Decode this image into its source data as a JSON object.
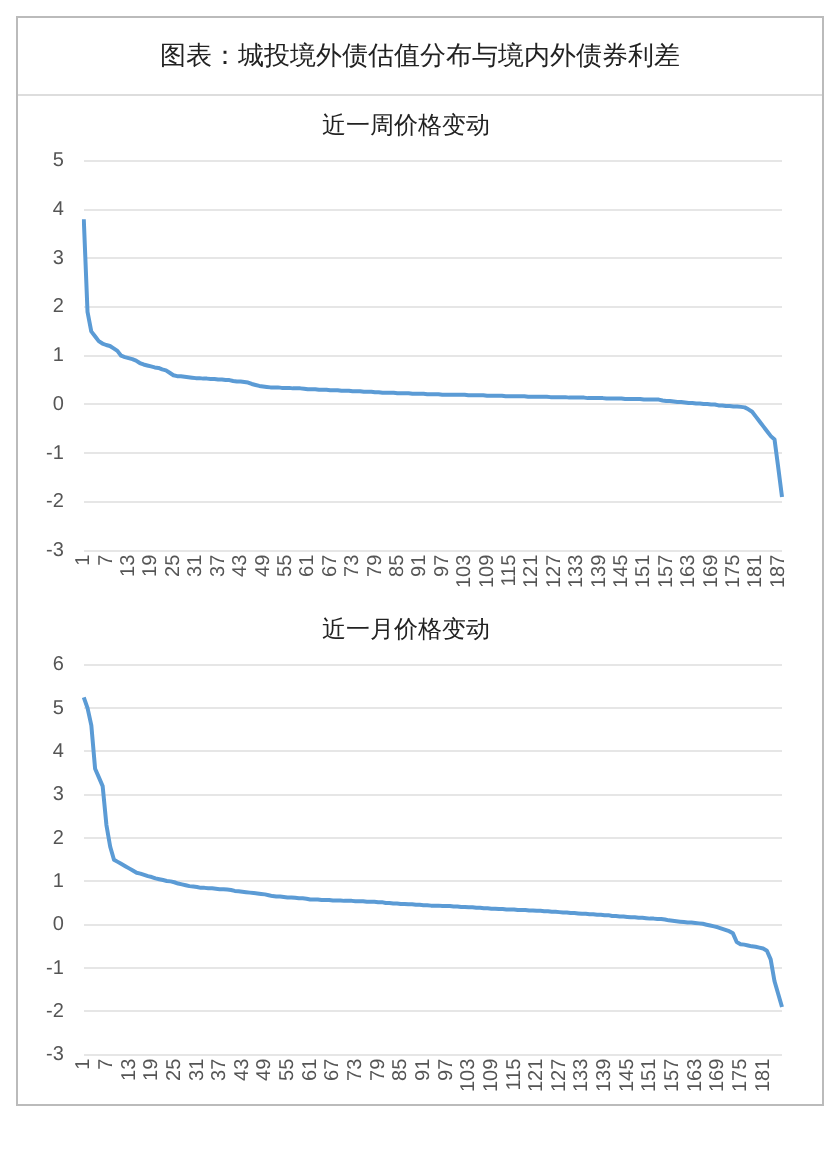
{
  "chart_data": [
    {
      "type": "line",
      "title": "图表：城投境外债估值分布与境内外债券利差",
      "subtitle": "近一周价格变动",
      "color": "#5b9bd5",
      "grid": "y",
      "legend": false,
      "marker": "none",
      "line_style": "solid",
      "categories": [
        "1",
        null,
        null,
        null,
        null,
        null,
        "7",
        null,
        null,
        null,
        null,
        null,
        "13",
        null,
        null,
        null,
        null,
        null,
        "19",
        null,
        null,
        null,
        null,
        null,
        "25",
        null,
        null,
        null,
        null,
        null,
        "31",
        null,
        null,
        null,
        null,
        null,
        "37",
        null,
        null,
        null,
        null,
        null,
        "43",
        null,
        null,
        null,
        null,
        null,
        "49",
        null,
        null,
        null,
        null,
        null,
        "55",
        null,
        null,
        null,
        null,
        null,
        "61",
        null,
        null,
        null,
        null,
        null,
        "67",
        null,
        null,
        null,
        null,
        null,
        "73",
        null,
        null,
        null,
        null,
        null,
        "79",
        null,
        null,
        null,
        null,
        null,
        "85",
        null,
        null,
        null,
        null,
        null,
        "91",
        null,
        null,
        null,
        null,
        null,
        "97",
        null,
        null,
        null,
        null,
        null,
        "103",
        null,
        null,
        null,
        null,
        null,
        "109",
        null,
        null,
        null,
        null,
        null,
        "115",
        null,
        null,
        null,
        null,
        null,
        "121",
        null,
        null,
        null,
        null,
        null,
        "127",
        null,
        null,
        null,
        null,
        null,
        "133",
        null,
        null,
        null,
        null,
        null,
        "139",
        null,
        null,
        null,
        null,
        null,
        "145",
        null,
        null,
        null,
        null,
        null,
        "151",
        null,
        null,
        null,
        null,
        null,
        "157",
        null,
        null,
        null,
        null,
        null,
        "163",
        null,
        null,
        null,
        null,
        null,
        "169",
        null,
        null,
        null,
        null,
        null,
        "175",
        null,
        null,
        null,
        null,
        null,
        "181",
        null,
        null,
        null,
        null,
        null,
        "187",
        null
      ],
      "values": [
        3.8,
        1.9,
        1.5,
        1.4,
        1.3,
        1.25,
        1.22,
        1.2,
        1.15,
        1.1,
        1.0,
        0.97,
        0.95,
        0.93,
        0.9,
        0.85,
        0.82,
        0.8,
        0.78,
        0.76,
        0.75,
        0.72,
        0.7,
        0.65,
        0.6,
        0.58,
        0.58,
        0.57,
        0.56,
        0.55,
        0.54,
        0.54,
        0.53,
        0.53,
        0.52,
        0.52,
        0.51,
        0.51,
        0.5,
        0.5,
        0.48,
        0.47,
        0.47,
        0.46,
        0.45,
        0.42,
        0.4,
        0.38,
        0.37,
        0.36,
        0.35,
        0.35,
        0.35,
        0.34,
        0.34,
        0.34,
        0.33,
        0.33,
        0.33,
        0.32,
        0.31,
        0.31,
        0.31,
        0.3,
        0.3,
        0.3,
        0.29,
        0.29,
        0.29,
        0.28,
        0.28,
        0.28,
        0.27,
        0.27,
        0.27,
        0.26,
        0.26,
        0.26,
        0.25,
        0.25,
        0.24,
        0.24,
        0.24,
        0.24,
        0.23,
        0.23,
        0.23,
        0.23,
        0.22,
        0.22,
        0.22,
        0.22,
        0.21,
        0.21,
        0.21,
        0.21,
        0.2,
        0.2,
        0.2,
        0.2,
        0.2,
        0.2,
        0.2,
        0.19,
        0.19,
        0.19,
        0.19,
        0.19,
        0.18,
        0.18,
        0.18,
        0.18,
        0.18,
        0.17,
        0.17,
        0.17,
        0.17,
        0.17,
        0.17,
        0.16,
        0.16,
        0.16,
        0.16,
        0.16,
        0.16,
        0.15,
        0.15,
        0.15,
        0.15,
        0.15,
        0.14,
        0.14,
        0.14,
        0.14,
        0.14,
        0.13,
        0.13,
        0.13,
        0.13,
        0.13,
        0.12,
        0.12,
        0.12,
        0.12,
        0.12,
        0.11,
        0.11,
        0.11,
        0.11,
        0.11,
        0.1,
        0.1,
        0.1,
        0.1,
        0.1,
        0.08,
        0.07,
        0.07,
        0.06,
        0.05,
        0.05,
        0.04,
        0.03,
        0.03,
        0.02,
        0.02,
        0.01,
        0.01,
        0.0,
        0.0,
        -0.02,
        -0.02,
        -0.03,
        -0.03,
        -0.04,
        -0.04,
        -0.05,
        -0.06,
        -0.1,
        -0.15,
        -0.25,
        -0.35,
        -0.45,
        -0.55,
        -0.65,
        -0.72,
        -1.3,
        -1.9
      ],
      "ylim": [
        -3,
        5
      ],
      "yticks": [
        -3,
        -2,
        -1,
        0,
        1,
        2,
        3,
        4,
        5
      ]
    },
    {
      "type": "line",
      "title": "近一月价格变动",
      "color": "#5b9bd5",
      "grid": "y",
      "legend": false,
      "marker": "none",
      "line_style": "solid",
      "categories": [
        "1",
        null,
        null,
        null,
        null,
        null,
        "7",
        null,
        null,
        null,
        null,
        null,
        "13",
        null,
        null,
        null,
        null,
        null,
        "19",
        null,
        null,
        null,
        null,
        null,
        "25",
        null,
        null,
        null,
        null,
        null,
        "31",
        null,
        null,
        null,
        null,
        null,
        "37",
        null,
        null,
        null,
        null,
        null,
        "43",
        null,
        null,
        null,
        null,
        null,
        "49",
        null,
        null,
        null,
        null,
        null,
        "55",
        null,
        null,
        null,
        null,
        null,
        "61",
        null,
        null,
        null,
        null,
        null,
        "67",
        null,
        null,
        null,
        null,
        null,
        "73",
        null,
        null,
        null,
        null,
        null,
        "79",
        null,
        null,
        null,
        null,
        null,
        "85",
        null,
        null,
        null,
        null,
        null,
        "91",
        null,
        null,
        null,
        null,
        null,
        "97",
        null,
        null,
        null,
        null,
        null,
        "103",
        null,
        null,
        null,
        null,
        null,
        "109",
        null,
        null,
        null,
        null,
        null,
        "115",
        null,
        null,
        null,
        null,
        null,
        "121",
        null,
        null,
        null,
        null,
        null,
        "127",
        null,
        null,
        null,
        null,
        null,
        "133",
        null,
        null,
        null,
        null,
        null,
        "139",
        null,
        null,
        null,
        null,
        null,
        "145",
        null,
        null,
        null,
        null,
        null,
        "151",
        null,
        null,
        null,
        null,
        null,
        "157",
        null,
        null,
        null,
        null,
        null,
        "163",
        null,
        null,
        null,
        null,
        null,
        "169",
        null,
        null,
        null,
        null,
        null,
        "175",
        null,
        null,
        null,
        null,
        null,
        "181",
        null,
        null,
        null,
        null,
        null
      ],
      "values": [
        5.25,
        5.0,
        4.6,
        3.6,
        3.4,
        3.2,
        2.3,
        1.8,
        1.5,
        1.45,
        1.4,
        1.35,
        1.3,
        1.25,
        1.2,
        1.18,
        1.15,
        1.12,
        1.1,
        1.07,
        1.05,
        1.03,
        1.01,
        1.0,
        0.98,
        0.95,
        0.93,
        0.91,
        0.89,
        0.88,
        0.87,
        0.85,
        0.85,
        0.84,
        0.84,
        0.83,
        0.82,
        0.82,
        0.81,
        0.8,
        0.78,
        0.77,
        0.76,
        0.75,
        0.74,
        0.73,
        0.72,
        0.71,
        0.7,
        0.68,
        0.66,
        0.65,
        0.65,
        0.64,
        0.63,
        0.63,
        0.62,
        0.61,
        0.61,
        0.6,
        0.58,
        0.58,
        0.58,
        0.57,
        0.57,
        0.57,
        0.56,
        0.56,
        0.56,
        0.55,
        0.55,
        0.55,
        0.54,
        0.54,
        0.54,
        0.53,
        0.53,
        0.53,
        0.52,
        0.52,
        0.5,
        0.5,
        0.49,
        0.49,
        0.48,
        0.48,
        0.47,
        0.47,
        0.46,
        0.46,
        0.45,
        0.45,
        0.44,
        0.44,
        0.44,
        0.43,
        0.43,
        0.43,
        0.42,
        0.42,
        0.41,
        0.41,
        0.4,
        0.4,
        0.39,
        0.39,
        0.38,
        0.38,
        0.37,
        0.37,
        0.36,
        0.36,
        0.35,
        0.35,
        0.35,
        0.34,
        0.34,
        0.34,
        0.33,
        0.33,
        0.32,
        0.32,
        0.31,
        0.31,
        0.3,
        0.3,
        0.29,
        0.28,
        0.28,
        0.27,
        0.27,
        0.26,
        0.25,
        0.25,
        0.24,
        0.24,
        0.23,
        0.23,
        0.22,
        0.22,
        0.2,
        0.2,
        0.19,
        0.19,
        0.18,
        0.17,
        0.17,
        0.16,
        0.16,
        0.15,
        0.14,
        0.14,
        0.13,
        0.13,
        0.12,
        0.1,
        0.09,
        0.08,
        0.07,
        0.06,
        0.05,
        0.05,
        0.04,
        0.03,
        0.02,
        0.0,
        -0.02,
        -0.04,
        -0.06,
        -0.09,
        -0.12,
        -0.15,
        -0.2,
        -0.4,
        -0.45,
        -0.46,
        -0.48,
        -0.5,
        -0.51,
        -0.53,
        -0.55,
        -0.6,
        -0.8,
        -1.3,
        -1.6,
        -1.9
      ],
      "ylim": [
        -3,
        6
      ],
      "yticks": [
        -3,
        -2,
        -1,
        0,
        1,
        2,
        3,
        4,
        5,
        6
      ]
    }
  ]
}
